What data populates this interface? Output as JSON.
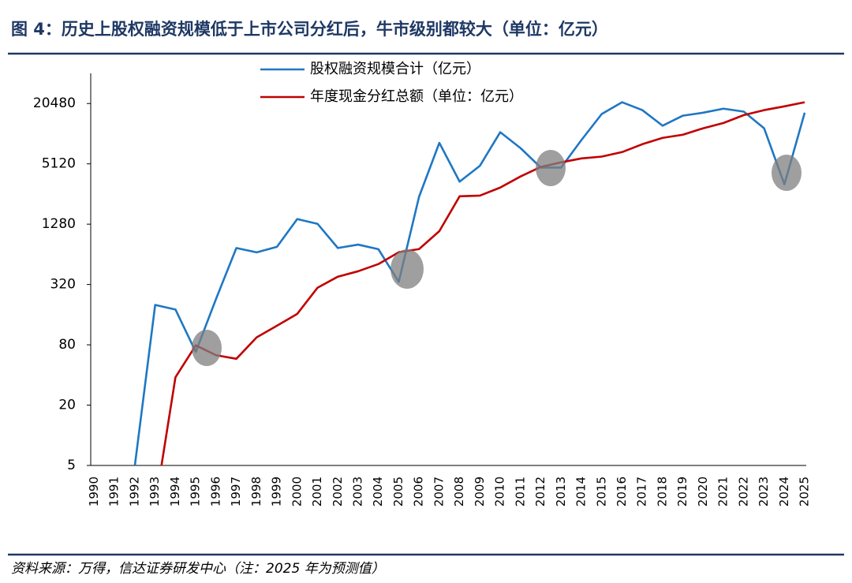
{
  "chart_data": {
    "type": "line",
    "title": "图 4：历史上股权融资规模低于上市公司分红后，牛市级别都较大（单位：亿元）",
    "source": "资料来源：万得，信达证券研发中心（注：2025 年为预测值）",
    "categories": [
      "1990",
      "1991",
      "1992",
      "1993",
      "1994",
      "1995",
      "1996",
      "1997",
      "1998",
      "1999",
      "2000",
      "2001",
      "2002",
      "2003",
      "2004",
      "2005",
      "2006",
      "2007",
      "2008",
      "2009",
      "2010",
      "2011",
      "2012",
      "2013",
      "2014",
      "2015",
      "2016",
      "2017",
      "2018",
      "2019",
      "2020",
      "2021",
      "2022",
      "2023",
      "2024",
      "2025"
    ],
    "series": [
      {
        "name": "股权融资规模合计（亿元）",
        "color": "#1f77c4",
        "values": [
          null,
          null,
          5,
          200,
          180,
          68,
          230,
          740,
          670,
          760,
          1440,
          1290,
          740,
          800,
          720,
          340,
          2400,
          8300,
          3400,
          4900,
          10600,
          7350,
          4700,
          4700,
          8850,
          16100,
          21100,
          17600,
          12300,
          15500,
          16600,
          18200,
          17000,
          11600,
          3200,
          16600
        ]
      },
      {
        "name": "年度现金分红总额（单位：亿元）",
        "color": "#c00000",
        "values": [
          null,
          null,
          null,
          2,
          38,
          79,
          63,
          58,
          95,
          124,
          163,
          297,
          383,
          434,
          512,
          672,
          722,
          1090,
          2430,
          2470,
          2970,
          3830,
          4770,
          5300,
          5800,
          6050,
          6710,
          8040,
          9300,
          10000,
          11600,
          13100,
          15700,
          17600,
          19200,
          21100
        ]
      }
    ],
    "log_scale": true,
    "ylim": [
      5,
      40960
    ],
    "yticks": [
      5,
      20,
      80,
      320,
      1280,
      5120,
      20480
    ],
    "grid": false
  }
}
